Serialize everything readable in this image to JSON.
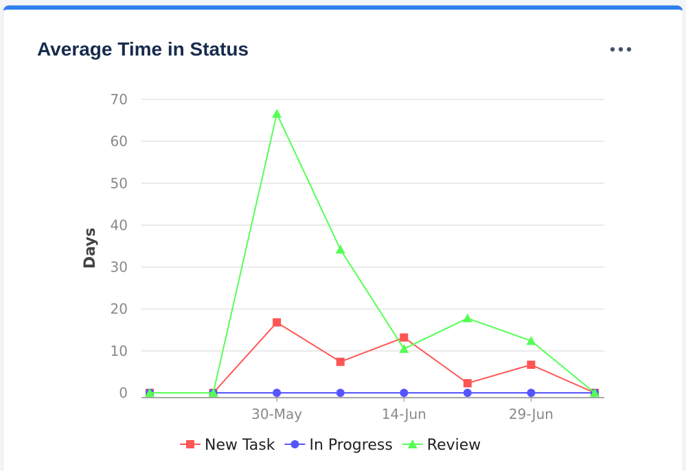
{
  "header": {
    "title": "Average Time in Status"
  },
  "chart_data": {
    "type": "line",
    "categories": [
      null,
      null,
      "30-May",
      null,
      "14-Jun",
      null,
      "29-Jun",
      null
    ],
    "series": [
      {
        "name": "New Task",
        "color": "#ff5555",
        "marker": "square",
        "values": [
          0,
          0,
          16.8,
          7.4,
          13.2,
          2.3,
          6.7,
          0
        ]
      },
      {
        "name": "In Progress",
        "color": "#5555ff",
        "marker": "circle",
        "values": [
          0,
          0,
          0,
          0,
          0,
          0,
          0,
          0
        ]
      },
      {
        "name": "Review",
        "color": "#55ff55",
        "marker": "triangle",
        "values": [
          0,
          0,
          66.6,
          34.2,
          10.5,
          17.8,
          12.4,
          0
        ]
      }
    ],
    "y_label": "Days",
    "ylim": [
      0,
      70
    ],
    "yticks": [
      0,
      10,
      20,
      30,
      40,
      50,
      60,
      70
    ],
    "grid": true,
    "legend": "bottom"
  }
}
